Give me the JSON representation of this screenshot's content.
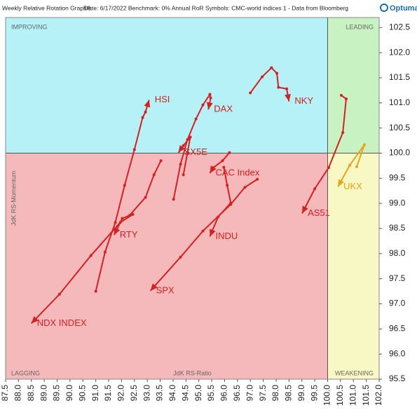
{
  "chart_data": {
    "type": "rrg",
    "title": "Weekly Relative Rotation Graph®",
    "subtitle": "Date: 6/17/2022  Benchmark: 0% Annual RoR  Symbols: CMC-world indices 1 - Data from Bloomberg",
    "logo": "Optuma",
    "x_label": "JdK RS-Ratio",
    "y_label": "JdK RS-Momentum",
    "quadrants": {
      "top_left": "IMPROVING",
      "top_right": "LEADING",
      "bottom_left": "LAGGING",
      "bottom_right": "WEAKENING"
    },
    "quadrant_colors": {
      "top_left": "#b5f1f6",
      "top_right": "#c9f2c3",
      "bottom_left": "#f6b9bb",
      "bottom_right": "#f8f8c4"
    },
    "quadrant_center": {
      "x": 100,
      "y": 100
    },
    "xlim": [
      87.5,
      102.0
    ],
    "ylim": [
      95.5,
      102.7
    ],
    "xticks": [
      87.5,
      {
        "value": 88,
        "label": "88.0"
      },
      88.5,
      {
        "value": 89,
        "label": "89.0"
      },
      89.5,
      {
        "value": 90,
        "label": "90.0"
      },
      90.5,
      {
        "value": 91,
        "label": "91.0"
      },
      91.5,
      {
        "value": 92,
        "label": "92.0"
      },
      92.5,
      {
        "value": 93,
        "label": "93.0"
      },
      93.5,
      {
        "value": 94,
        "label": "94.0"
      },
      94.5,
      {
        "value": 95,
        "label": "95.0"
      },
      95.5,
      {
        "value": 96,
        "label": "96.0"
      },
      96.5,
      {
        "value": 97,
        "label": "97.0"
      },
      97.5,
      {
        "value": 98,
        "label": "98.0"
      },
      98.5,
      {
        "value": 99,
        "label": "99.0"
      },
      99.5,
      {
        "value": 100,
        "label": "100.0"
      },
      100.5,
      {
        "value": 101,
        "label": "101.0"
      },
      101.5,
      {
        "value": 102,
        "label": "102.0"
      }
    ],
    "yticks": [
      95.5,
      {
        "value": 96,
        "label": "96.0"
      },
      96.5,
      {
        "value": 97,
        "label": "97.0"
      },
      97.5,
      {
        "value": 98,
        "label": "98.0"
      },
      98.5,
      {
        "value": 99,
        "label": "99.0"
      },
      99.5,
      {
        "value": 100,
        "label": "100.0"
      },
      100.5,
      {
        "value": 101,
        "label": "101.0"
      },
      101.5,
      {
        "value": 102,
        "label": "102.0"
      },
      102.5
    ],
    "series": [
      {
        "name": "HSI",
        "color": "#d42020",
        "x": [
          91.0,
          91.36,
          91.76,
          92.12,
          92.5,
          92.82,
          92.93,
          93.07
        ],
        "values": [
          97.25,
          98.03,
          98.62,
          99.36,
          100.07,
          100.71,
          100.82,
          101.06
        ]
      },
      {
        "name": "RTY",
        "color": "#d42020",
        "x": [
          93.53,
          93.26,
          92.93,
          92.31,
          92.03,
          91.71
        ],
        "values": [
          99.85,
          99.57,
          99.12,
          98.76,
          98.7,
          98.37
        ]
      },
      {
        "name": "NDX INDEX",
        "color": "#d42020",
        "x": [
          92.44,
          91.95,
          90.81,
          89.59,
          88.5
        ],
        "values": [
          98.78,
          98.62,
          97.96,
          97.19,
          96.61
        ]
      },
      {
        "name": "DAX",
        "color": "#d42020",
        "x": [
          94.02,
          94.29,
          94.56,
          94.89,
          95.16,
          95.43,
          95.46,
          95.37
        ],
        "values": [
          99.08,
          99.78,
          100.27,
          100.68,
          100.96,
          101.17,
          101.1,
          100.87
        ]
      },
      {
        "name": "SX5E",
        "color": "#d42020",
        "x": [
          94.4,
          94.56,
          94.67,
          94.4,
          94.21
        ],
        "values": [
          99.57,
          100.01,
          100.32,
          100.15,
          100.01
        ]
      },
      {
        "name": "CAC Index",
        "color": "#d42020",
        "x": [
          96.19,
          95.92,
          95.56,
          95.43
        ],
        "values": [
          100.01,
          99.85,
          99.71,
          99.6
        ]
      },
      {
        "name": "INDU",
        "color": "#d42020",
        "x": [
          95.97,
          96.1,
          96.24,
          95.75,
          95.43
        ],
        "values": [
          99.72,
          99.36,
          99.01,
          98.73,
          98.34
        ]
      },
      {
        "name": "SPX",
        "color": "#d42020",
        "x": [
          97.27,
          96.79,
          96.24,
          95.16,
          94.29,
          93.12
        ],
        "values": [
          99.48,
          99.32,
          98.98,
          98.45,
          97.93,
          97.26
        ]
      },
      {
        "name": "NKY",
        "color": "#d42020",
        "x": [
          97.0,
          97.46,
          97.82,
          98.03,
          98.09,
          98.41,
          98.5
        ],
        "values": [
          101.2,
          101.52,
          101.7,
          101.59,
          101.31,
          101.28,
          101.03
        ]
      },
      {
        "name": "AS51",
        "color": "#d42020",
        "x": [
          100.53,
          100.72,
          100.59,
          100.04,
          99.5,
          99.01
        ],
        "values": [
          101.15,
          101.08,
          100.41,
          99.71,
          99.29,
          98.8
        ]
      },
      {
        "name": "UKX",
        "color": "#e8a317",
        "x": [
          101.13,
          101.43,
          100.86,
          100.4
        ],
        "values": [
          99.73,
          100.17,
          99.76,
          99.33
        ]
      }
    ]
  }
}
